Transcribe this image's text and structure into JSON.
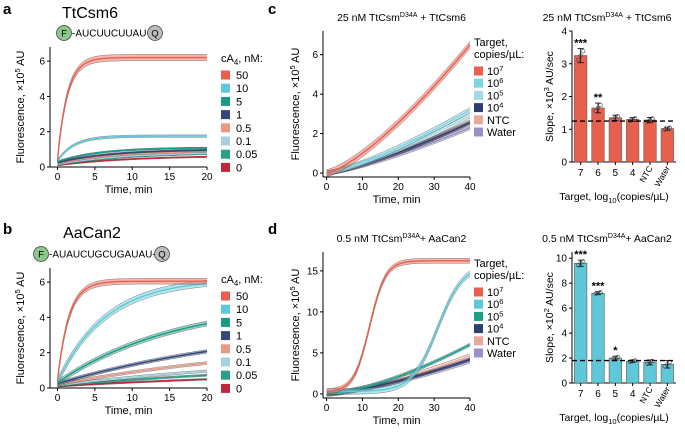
{
  "panels": {
    "a": {
      "letter": "a",
      "title": "TtCsm6",
      "seq_f": "F",
      "seq": "-AUCUUCUUAU-",
      "seq_q": "Q"
    },
    "b": {
      "letter": "b",
      "title": "AaCan2",
      "seq_f": "F",
      "seq": "-AUAUCUGCUGAUAU-",
      "seq_q": "Q"
    },
    "c": {
      "letter": "c"
    },
    "d": {
      "letter": "d"
    }
  },
  "legend_ab": {
    "title_prefix": "cA",
    "title_sub": "4",
    "title_suffix": ", nM:",
    "labels": [
      "50",
      "10",
      "5",
      "1",
      "0.5",
      "0.1",
      "0.05",
      "0"
    ],
    "colors": [
      "#e8604d",
      "#5ec8d8",
      "#1a9a82",
      "#33477a",
      "#e89a86",
      "#a6cfe0",
      "#2aa08a",
      "#c0283a"
    ]
  },
  "legend_cd": {
    "title_line1": "Target,",
    "title_line2": "copies/µL:",
    "labels": [
      {
        "base": "10",
        "exp": "7"
      },
      {
        "base": "10",
        "exp": "6"
      },
      {
        "base": "10",
        "exp": "5"
      },
      {
        "base": "10",
        "exp": "4"
      },
      {
        "base": "NTC",
        "exp": ""
      },
      {
        "base": "Water",
        "exp": ""
      }
    ],
    "colors_c": [
      "#e8604d",
      "#7fd6e3",
      "#a6d9e6",
      "#2e3e6e",
      "#e8a89a",
      "#9a8fc6"
    ],
    "colors_d": [
      "#e8604d",
      "#5ec8d8",
      "#1aa08a",
      "#2e3e6e",
      "#e8a89a",
      "#9a8fc6"
    ]
  },
  "chart_data": [
    {
      "id": "a",
      "type": "line",
      "title": "TtCsm6",
      "xlabel": "Time, min",
      "ylabel": "Fluorescence, ×10^5 AU",
      "xlim": [
        -1,
        20
      ],
      "ylim": [
        0,
        6.8
      ],
      "xticks": [
        0,
        5,
        10,
        15,
        20
      ],
      "yticks": [
        0,
        2,
        4,
        6
      ],
      "series": [
        {
          "name": "50",
          "start": 0.4,
          "end": 6.2,
          "tau": 1.3,
          "band": 0.18
        },
        {
          "name": "10",
          "start": 0.35,
          "end": 1.75,
          "tau": 2.2,
          "band": 0.07
        },
        {
          "name": "5",
          "start": 0.3,
          "end": 1.1,
          "tau": 5.5,
          "band": 0.05
        },
        {
          "name": "1",
          "start": 0.25,
          "end": 1.0,
          "tau": 7.0,
          "band": 0.05
        },
        {
          "name": "0.5",
          "start": 0.2,
          "end": 0.95,
          "tau": 8.0,
          "band": 0.05
        },
        {
          "name": "0.1",
          "start": 0.15,
          "end": 0.85,
          "tau": 9.0,
          "band": 0.04
        },
        {
          "name": "0.05",
          "start": 0.12,
          "end": 0.82,
          "tau": 9.5,
          "band": 0.04
        },
        {
          "name": "0",
          "start": 0.1,
          "end": 0.65,
          "tau": 10.0,
          "band": 0.04
        }
      ]
    },
    {
      "id": "b",
      "type": "line",
      "title": "AaCan2",
      "xlabel": "Time, min",
      "ylabel": "Fluorescence, ×10^5 AU",
      "xlim": [
        -1,
        20
      ],
      "ylim": [
        0,
        6.8
      ],
      "xticks": [
        0,
        5,
        10,
        15,
        20
      ],
      "yticks": [
        0,
        2,
        4,
        6
      ],
      "series": [
        {
          "name": "50",
          "start": 0.4,
          "end": 6.05,
          "tau": 1.5,
          "band": 0.16
        },
        {
          "name": "10",
          "start": 0.35,
          "end": 6.2,
          "tau": 6.5,
          "band": 0.18
        },
        {
          "name": "5",
          "start": 0.3,
          "end": 5.0,
          "tau": 16.0,
          "band": 0.14
        },
        {
          "name": "1",
          "start": 0.25,
          "end": 4.0,
          "tau": 30.0,
          "band": 0.1
        },
        {
          "name": "0.5",
          "start": 0.2,
          "end": 3.0,
          "tau": 35.0,
          "band": 0.08
        },
        {
          "name": "0.1",
          "start": 0.15,
          "end": 2.0,
          "tau": 35.0,
          "band": 0.07
        },
        {
          "name": "0.05",
          "start": 0.12,
          "end": 1.6,
          "tau": 38.0,
          "band": 0.06
        },
        {
          "name": "0",
          "start": 0.1,
          "end": 1.1,
          "tau": 40.0,
          "band": 0.05
        }
      ]
    },
    {
      "id": "c-line",
      "type": "line",
      "title": {
        "a": "25 nM TtCsm",
        "sup": "D34A",
        "b": " + TtCsm6"
      },
      "xlabel": "Time, min",
      "ylabel": "Fluorescence, ×10^5 AU",
      "xlim": [
        -1,
        40
      ],
      "ylim": [
        -0.2,
        7.2
      ],
      "xticks": [
        0,
        10,
        20,
        30,
        40
      ],
      "yticks": [
        0,
        2,
        4,
        6
      ],
      "series": [
        {
          "name": "10^7",
          "end40": 6.5,
          "p": 1.35,
          "band": 0.18
        },
        {
          "name": "10^6",
          "end40": 3.2,
          "p": 1.3,
          "band": 0.12
        },
        {
          "name": "10^5",
          "end40": 2.9,
          "p": 1.3,
          "band": 0.12
        },
        {
          "name": "10^4",
          "end40": 2.55,
          "p": 1.3,
          "band": 0.1
        },
        {
          "name": "NTC",
          "end40": 2.6,
          "p": 1.3,
          "band": 0.1
        },
        {
          "name": "Water",
          "end40": 2.3,
          "p": 1.3,
          "band": 0.1
        }
      ]
    },
    {
      "id": "c-bar",
      "type": "bar",
      "title": {
        "a": "25 nM TtCsm",
        "sup": "D34A",
        "b": " + TtCsm6"
      },
      "xlabel": {
        "a": "Target, log",
        "sub": "10",
        "b": "(copies/µL)"
      },
      "ylabel": "Slope, ×10^3 AU/sec",
      "categories": [
        "7",
        "6",
        "5",
        "4",
        "NTC",
        "Water"
      ],
      "values": [
        3.25,
        1.65,
        1.35,
        1.3,
        1.28,
        1.02
      ],
      "errors": [
        0.22,
        0.15,
        0.08,
        0.06,
        0.08,
        0.05
      ],
      "significance": [
        "***",
        "**",
        "",
        "",
        "",
        ""
      ],
      "baseline": 1.25,
      "ylim": [
        0,
        4.0
      ],
      "yticks": [
        0,
        1,
        2,
        3,
        4
      ]
    },
    {
      "id": "d-line",
      "type": "line",
      "title": {
        "a": "0.5 nM TtCsm",
        "sup": "D34A",
        "b": "+ AaCan2"
      },
      "xlabel": "Time, min",
      "ylabel": "Fluorescence, ×10^5 AU",
      "xlim": [
        -1,
        40
      ],
      "ylim": [
        -0.5,
        17.3
      ],
      "xticks": [
        0,
        10,
        20,
        30,
        40
      ],
      "yticks": [
        0,
        5,
        10,
        15
      ],
      "series": [
        {
          "name": "10^7",
          "kind": "sig",
          "max": 16.0,
          "mid": 12.0,
          "k": 0.45,
          "base": 0.3,
          "band": 0.3
        },
        {
          "name": "10^6",
          "kind": "sig",
          "max": 15.5,
          "mid": 31.0,
          "k": 0.28,
          "base": 0.3,
          "band": 0.35
        },
        {
          "name": "10^5",
          "kind": "pow",
          "end40": 6.0,
          "p": 1.5,
          "band": 0.2
        },
        {
          "name": "10^4",
          "kind": "pow",
          "end40": 4.2,
          "p": 1.4,
          "band": 0.2
        },
        {
          "name": "NTC",
          "kind": "pow",
          "end40": 4.6,
          "p": 1.4,
          "band": 0.3
        },
        {
          "name": "Water",
          "kind": "pow",
          "end40": 4.0,
          "p": 1.4,
          "band": 0.25
        }
      ]
    },
    {
      "id": "d-bar",
      "type": "bar",
      "title": {
        "a": "0.5 nM TtCsm",
        "sup": "D34A",
        "b": "+ AaCan2"
      },
      "xlabel": {
        "a": "Target, log",
        "sub": "10",
        "b": "(copies/µL)"
      },
      "ylabel": "Slope, ×10^2 AU/sec",
      "categories": [
        "7",
        "6",
        "5",
        "4",
        "NTC",
        "Water"
      ],
      "values": [
        9.6,
        7.2,
        2.0,
        1.75,
        1.65,
        1.5
      ],
      "errors": [
        0.25,
        0.12,
        0.15,
        0.1,
        0.2,
        0.3
      ],
      "significance": [
        "***",
        "***",
        "*",
        "",
        "",
        ""
      ],
      "baseline": 1.8,
      "ylim": [
        0,
        10.5
      ],
      "yticks": [
        0,
        2,
        4,
        6,
        8,
        10
      ]
    }
  ]
}
